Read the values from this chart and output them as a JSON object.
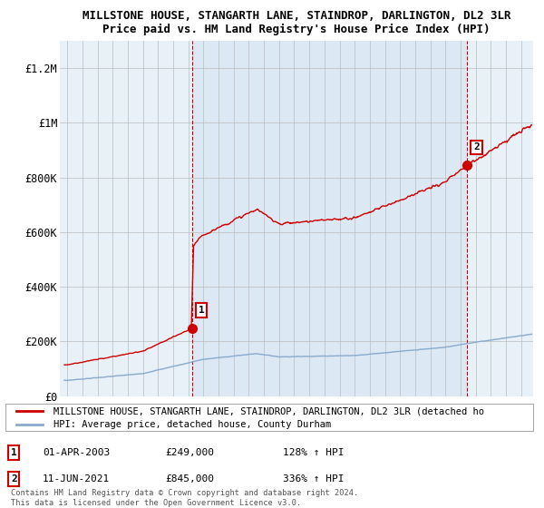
{
  "title_line1": "MILLSTONE HOUSE, STANGARTH LANE, STAINDROP, DARLINGTON, DL2 3LR",
  "title_line2": "Price paid vs. HM Land Registry's House Price Index (HPI)",
  "ylabel_ticks": [
    "£0",
    "£200K",
    "£400K",
    "£600K",
    "£800K",
    "£1M",
    "£1.2M"
  ],
  "ytick_values": [
    0,
    200000,
    400000,
    600000,
    800000,
    1000000,
    1200000
  ],
  "ylim": [
    0,
    1300000
  ],
  "xlim_start": 1994.5,
  "xlim_end": 2025.8,
  "sale1_x": 2003.25,
  "sale1_y": 249000,
  "sale1_label": "1",
  "sale1_date": "01-APR-2003",
  "sale1_price": "£249,000",
  "sale1_hpi": "128% ↑ HPI",
  "sale2_x": 2021.45,
  "sale2_y": 845000,
  "sale2_label": "2",
  "sale2_date": "11-JUN-2021",
  "sale2_price": "£845,000",
  "sale2_hpi": "336% ↑ HPI",
  "line_color_red": "#cc0000",
  "line_color_blue": "#88aacc",
  "legend_label_red": "MILLSTONE HOUSE, STANGARTH LANE, STAINDROP, DARLINGTON, DL2 3LR (detached ho",
  "legend_label_blue": "HPI: Average price, detached house, County Durham",
  "footnote": "Contains HM Land Registry data © Crown copyright and database right 2024.\nThis data is licensed under the Open Government Licence v3.0.",
  "background_color": "#ffffff",
  "plot_bg_color": "#e8f0f8",
  "grid_color": "#bbbbbb",
  "shade_color": "#dce8f5"
}
